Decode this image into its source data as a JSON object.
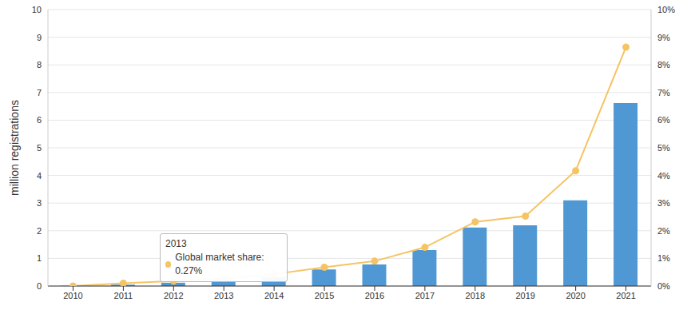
{
  "chart_data": {
    "type": "bar",
    "y_label": "million registrations",
    "categories": [
      "2010",
      "2011",
      "2012",
      "2013",
      "2014",
      "2015",
      "2016",
      "2017",
      "2018",
      "2019",
      "2020",
      "2021"
    ],
    "series": [
      {
        "type": "bar",
        "color": "#5098d3",
        "values": [
          0.01,
          0.05,
          0.12,
          0.22,
          0.33,
          0.6,
          0.78,
          1.3,
          2.12,
          2.2,
          3.1,
          6.62
        ]
      },
      {
        "type": "line",
        "axis": "y2",
        "color": "#f5c463",
        "marker": "circle",
        "values": [
          0.0,
          0.1,
          0.18,
          0.27,
          0.43,
          0.68,
          0.9,
          1.4,
          2.32,
          2.53,
          4.17,
          8.64
        ]
      }
    ],
    "ylim": [
      0,
      10
    ],
    "yticks": [
      0,
      1,
      2,
      3,
      4,
      5,
      6,
      7,
      8,
      9,
      10
    ],
    "y2lim": [
      0,
      10
    ],
    "y2ticks": [
      {
        "value": 0,
        "label": "0%"
      },
      {
        "value": 1,
        "label": "1%"
      },
      {
        "value": 2,
        "label": "2%"
      },
      {
        "value": 3,
        "label": "3%"
      },
      {
        "value": 4,
        "label": "4%"
      },
      {
        "value": 5,
        "label": "5%"
      },
      {
        "value": 6,
        "label": "6%"
      },
      {
        "value": 7,
        "label": "7%"
      },
      {
        "value": 8,
        "label": "8%"
      },
      {
        "value": 9,
        "label": "9%"
      },
      {
        "value": 10,
        "label": "10%"
      }
    ],
    "grid": true,
    "annotation": {
      "title": "2013",
      "text": "Global market share: 0.27%"
    }
  }
}
